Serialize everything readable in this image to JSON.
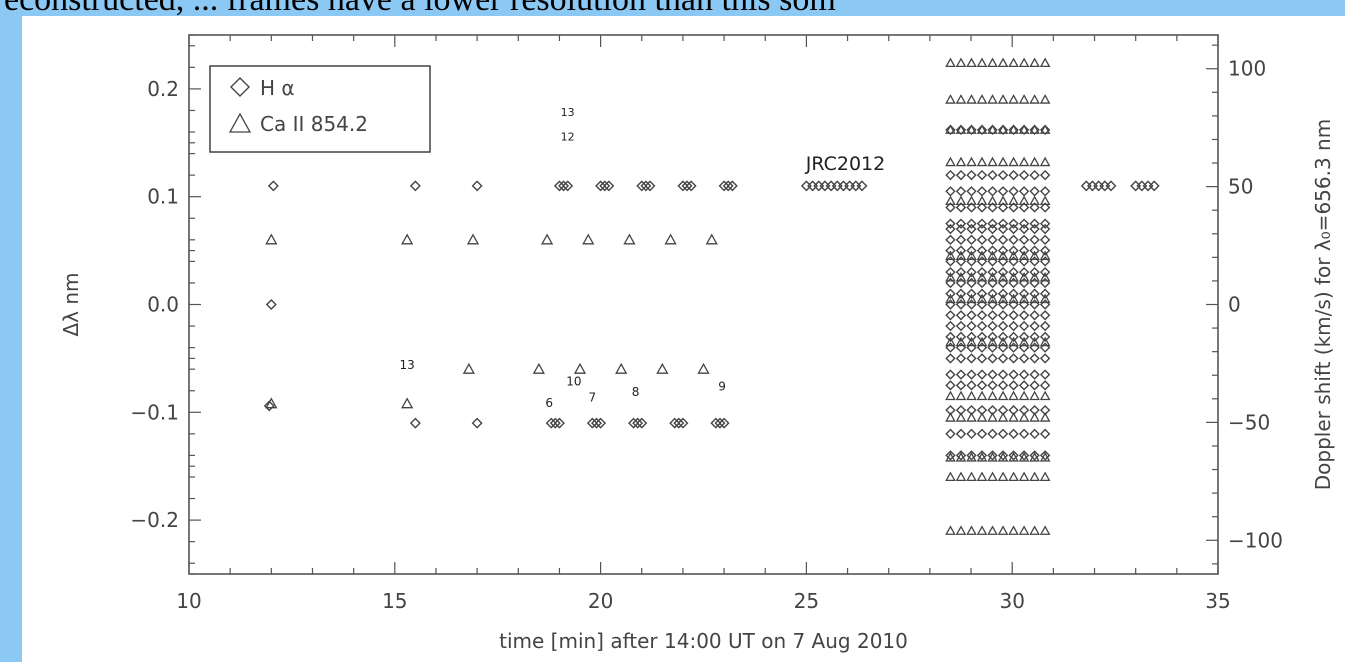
{
  "page": {
    "top_text": "econstructed, ... frames have a lower resolution than this som"
  },
  "chart_data": {
    "type": "scatter",
    "xlabel": "time [min] after 14:00 UT on 7 Aug 2010",
    "ylabel": "Δλ nm",
    "y2label": "Doppler shift (km/s) for λ₀=656.3 nm",
    "xlim": [
      10,
      35
    ],
    "ylim": [
      -0.25,
      0.25
    ],
    "y2lim": [
      -114.3,
      114.3
    ],
    "x_ticks": [
      10,
      15,
      20,
      25,
      30,
      35
    ],
    "y_ticks": [
      -0.2,
      -0.1,
      0.0,
      0.1,
      0.2
    ],
    "y_tick_labels": [
      "−0.2",
      "−0.1",
      "0.0",
      "0.1",
      "0.2"
    ],
    "y2_ticks": [
      -100,
      -50,
      0,
      50,
      100
    ],
    "y2_tick_labels": [
      "−100",
      "−50",
      "0",
      "50",
      "100"
    ],
    "legend": {
      "position": "top-left",
      "entries": [
        {
          "symbol": "diamond",
          "label": "H α"
        },
        {
          "symbol": "triangle",
          "label": "Ca II 854.2"
        }
      ]
    },
    "series": [
      {
        "name": "H α",
        "symbol": "diamond",
        "points": [
          [
            12.05,
            0.11
          ],
          [
            12.0,
            0.0
          ],
          [
            11.95,
            -0.094
          ],
          [
            15.5,
            0.11
          ],
          [
            17.0,
            0.11
          ],
          [
            15.5,
            -0.11
          ],
          [
            17.0,
            -0.11
          ],
          [
            19.0,
            0.11
          ],
          [
            19.1,
            0.11
          ],
          [
            19.2,
            0.11
          ],
          [
            20.0,
            0.11
          ],
          [
            20.1,
            0.11
          ],
          [
            20.2,
            0.11
          ],
          [
            21.0,
            0.11
          ],
          [
            21.1,
            0.11
          ],
          [
            21.2,
            0.11
          ],
          [
            22.0,
            0.11
          ],
          [
            22.1,
            0.11
          ],
          [
            22.2,
            0.11
          ],
          [
            23.0,
            0.11
          ],
          [
            23.1,
            0.11
          ],
          [
            23.2,
            0.11
          ],
          [
            18.8,
            -0.11
          ],
          [
            18.9,
            -0.11
          ],
          [
            19.0,
            -0.11
          ],
          [
            19.8,
            -0.11
          ],
          [
            19.9,
            -0.11
          ],
          [
            20.0,
            -0.11
          ],
          [
            20.8,
            -0.11
          ],
          [
            20.9,
            -0.11
          ],
          [
            21.0,
            -0.11
          ],
          [
            21.8,
            -0.11
          ],
          [
            21.9,
            -0.11
          ],
          [
            22.0,
            -0.11
          ],
          [
            22.8,
            -0.11
          ],
          [
            22.9,
            -0.11
          ],
          [
            23.0,
            -0.11
          ],
          [
            25.0,
            0.11
          ],
          [
            25.15,
            0.11
          ],
          [
            25.3,
            0.11
          ],
          [
            25.45,
            0.11
          ],
          [
            25.6,
            0.11
          ],
          [
            25.75,
            0.11
          ],
          [
            25.9,
            0.11
          ],
          [
            26.05,
            0.11
          ],
          [
            26.2,
            0.11
          ],
          [
            26.35,
            0.11
          ],
          [
            31.8,
            0.11
          ],
          [
            31.95,
            0.11
          ],
          [
            32.1,
            0.11
          ],
          [
            32.25,
            0.11
          ],
          [
            32.4,
            0.11
          ],
          [
            33.0,
            0.11
          ],
          [
            33.15,
            0.11
          ],
          [
            33.3,
            0.11
          ],
          [
            33.45,
            0.11
          ]
        ]
      },
      {
        "name": "Ca II 854.2",
        "symbol": "triangle",
        "points": [
          [
            12.0,
            0.06
          ],
          [
            15.3,
            0.06
          ],
          [
            16.9,
            0.06
          ],
          [
            18.7,
            0.06
          ],
          [
            19.7,
            0.06
          ],
          [
            20.7,
            0.06
          ],
          [
            21.7,
            0.06
          ],
          [
            22.7,
            0.06
          ],
          [
            12.0,
            -0.092
          ],
          [
            15.3,
            -0.092
          ],
          [
            16.8,
            -0.06
          ],
          [
            18.5,
            -0.06
          ],
          [
            19.5,
            -0.06
          ],
          [
            20.5,
            -0.06
          ],
          [
            21.5,
            -0.06
          ],
          [
            22.5,
            -0.06
          ]
        ]
      }
    ],
    "grid_block": {
      "x_start": 28.5,
      "x_end": 30.8,
      "columns": 10,
      "triangle_rows": [
        0.224,
        0.19,
        0.162,
        0.132,
        0.096,
        0.045,
        0.025,
        0.005,
        -0.035,
        -0.085,
        -0.105,
        -0.142,
        -0.16,
        -0.21
      ],
      "diamond_rows": [
        0.162,
        0.12,
        0.105,
        0.09,
        0.075,
        0.07,
        0.06,
        0.05,
        0.04,
        0.03,
        0.02,
        0.01,
        0.0,
        -0.01,
        -0.02,
        -0.03,
        -0.04,
        -0.05,
        -0.065,
        -0.075,
        -0.098,
        -0.12,
        -0.14
      ]
    },
    "annotations": [
      {
        "text": "JRC2012",
        "x": 25.95,
        "y": 0.125,
        "size": 19
      },
      {
        "text": "13",
        "x": 15.3,
        "y": -0.06,
        "size": 12
      },
      {
        "text": "10",
        "x": 19.35,
        "y": -0.075,
        "size": 12
      },
      {
        "text": "6",
        "x": 18.75,
        "y": -0.095,
        "size": 12
      },
      {
        "text": "7",
        "x": 19.8,
        "y": -0.09,
        "size": 12
      },
      {
        "text": "8",
        "x": 20.85,
        "y": -0.085,
        "size": 12
      },
      {
        "text": "9",
        "x": 22.95,
        "y": -0.08,
        "size": 12
      },
      {
        "text": "13",
        "x": 19.2,
        "y": 0.175,
        "size": 11
      },
      {
        "text": "12",
        "x": 19.2,
        "y": 0.152,
        "size": 11
      }
    ]
  }
}
